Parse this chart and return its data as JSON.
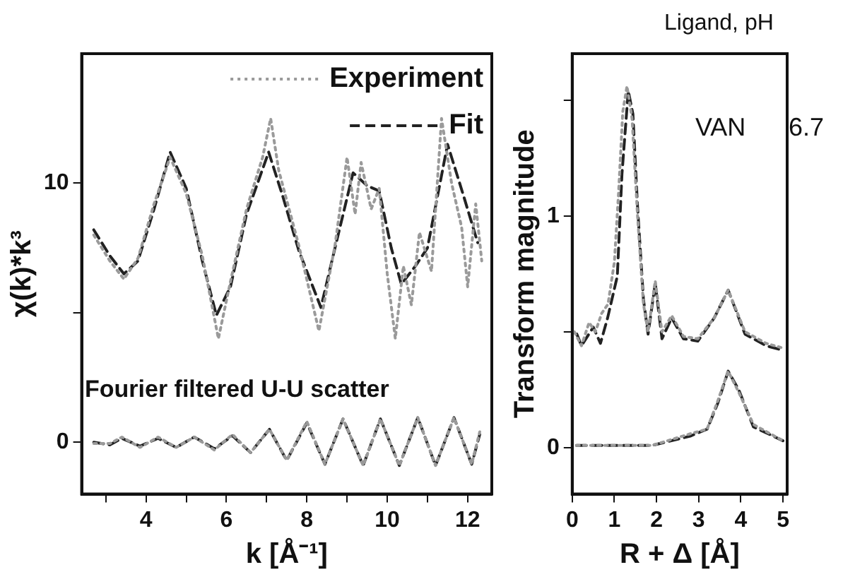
{
  "chart_data": [
    {
      "type": "line",
      "xlabel": "k [Å⁻¹]",
      "ylabel": "χ(k)*k³",
      "xlim": [
        2.4,
        12.6
      ],
      "ylim": [
        -2,
        15
      ],
      "xticks": [
        {
          "value": 3,
          "label": null
        },
        4,
        {
          "value": 5,
          "label": null
        },
        6,
        {
          "value": 7,
          "label": null
        },
        8,
        {
          "value": 9,
          "label": null
        },
        10,
        {
          "value": 11,
          "label": null
        },
        12
      ],
      "yticks": [
        0,
        {
          "value": 5,
          "label": null
        },
        10
      ],
      "grid": false,
      "legend": "top right",
      "marker": "none",
      "annotations": [
        "Fourier filtered U-U scatter"
      ],
      "series": [
        {
          "name": "Experiment",
          "color": "#9a9a9a",
          "line_style": "dotted",
          "x": [
            2.7,
            3.1,
            3.45,
            3.8,
            4.2,
            4.6,
            5.0,
            5.4,
            5.8,
            6.1,
            6.5,
            6.9,
            7.1,
            7.3,
            7.8,
            8.3,
            8.7,
            9.0,
            9.2,
            9.35,
            9.6,
            9.8,
            10.0,
            10.2,
            10.4,
            10.6,
            10.8,
            11.1,
            11.35,
            11.6,
            11.85,
            12.0,
            12.2,
            12.35
          ],
          "values": [
            8.0,
            7.0,
            6.3,
            7.1,
            9.2,
            11.0,
            9.6,
            7.2,
            4.0,
            6.2,
            9.0,
            11.0,
            12.5,
            10.5,
            7.6,
            4.3,
            7.6,
            11.0,
            8.8,
            10.8,
            9.0,
            9.8,
            6.5,
            4.0,
            6.8,
            5.3,
            8.1,
            6.6,
            12.5,
            10.0,
            8.3,
            6.0,
            9.2,
            7.0
          ]
        },
        {
          "name": "Fit",
          "color": "#222222",
          "line_style": "dashed",
          "x": [
            2.7,
            3.1,
            3.45,
            3.8,
            4.2,
            4.6,
            5.0,
            5.4,
            5.75,
            6.1,
            6.5,
            7.05,
            7.4,
            7.8,
            8.35,
            8.7,
            9.15,
            9.5,
            9.8,
            10.1,
            10.35,
            10.7,
            11.0,
            11.5,
            11.9,
            12.25
          ],
          "values": [
            8.2,
            7.2,
            6.5,
            7.0,
            9.0,
            11.2,
            9.8,
            7.0,
            4.9,
            6.0,
            8.8,
            11.2,
            9.5,
            7.4,
            5.2,
            7.5,
            10.4,
            9.9,
            9.7,
            7.5,
            6.1,
            6.8,
            7.5,
            11.5,
            9.5,
            7.7
          ]
        },
        {
          "color": "#9a9a9a",
          "line_style": "dotted",
          "x": [
            2.7,
            3.1,
            3.4,
            3.85,
            4.3,
            4.75,
            5.2,
            5.7,
            6.15,
            6.6,
            7.07,
            7.5,
            8.0,
            8.45,
            8.9,
            9.4,
            9.83,
            10.3,
            10.76,
            11.2,
            11.66,
            12.1,
            12.3
          ],
          "values": [
            -0.05,
            -0.05,
            0.2,
            -0.2,
            0.2,
            -0.2,
            0.2,
            -0.3,
            0.3,
            -0.4,
            0.5,
            -0.7,
            0.8,
            -0.85,
            0.9,
            -0.9,
            0.9,
            -0.9,
            0.95,
            -0.9,
            0.95,
            -0.85,
            0.4
          ]
        },
        {
          "color": "#222222",
          "line_style": "dashed",
          "x": [
            2.7,
            3.1,
            3.4,
            3.85,
            4.3,
            4.75,
            5.2,
            5.7,
            6.15,
            6.6,
            7.07,
            7.5,
            8.0,
            8.45,
            8.9,
            9.4,
            9.83,
            10.3,
            10.76,
            11.2,
            11.66,
            12.1,
            12.3
          ],
          "values": [
            0,
            -0.1,
            0.15,
            -0.15,
            0.15,
            -0.2,
            0.2,
            -0.25,
            0.25,
            -0.4,
            0.5,
            -0.7,
            0.75,
            -0.85,
            0.9,
            -0.9,
            0.9,
            -0.9,
            0.95,
            -0.9,
            0.95,
            -0.85,
            0.3
          ]
        }
      ]
    },
    {
      "type": "line",
      "xlabel": "R + Δ [Å]",
      "ylabel": "Transform magnitude",
      "xlim": [
        0,
        5.1
      ],
      "ylim": [
        -0.2,
        1.7
      ],
      "xticks": [
        0,
        1,
        2,
        3,
        4,
        5
      ],
      "yticks": [
        0,
        {
          "value": 0.5,
          "label": null
        },
        1,
        {
          "value": 1.5,
          "label": null
        }
      ],
      "grid": false,
      "marker": "none",
      "annotations": [
        "Ligand, pH",
        "VAN",
        "6.7"
      ],
      "series": [
        {
          "color": "#9a9a9a",
          "line_style": "dotted",
          "x": [
            0.05,
            0.22,
            0.4,
            0.55,
            0.7,
            0.85,
            1.0,
            1.1,
            1.2,
            1.3,
            1.42,
            1.55,
            1.69,
            1.8,
            1.97,
            2.13,
            2.36,
            2.64,
            2.98,
            3.37,
            3.7,
            4.1,
            4.6,
            5.0
          ],
          "values": [
            0.5,
            0.44,
            0.54,
            0.5,
            0.58,
            0.62,
            0.8,
            1.1,
            1.45,
            1.56,
            1.42,
            1.0,
            0.62,
            0.5,
            0.72,
            0.5,
            0.57,
            0.48,
            0.47,
            0.56,
            0.68,
            0.5,
            0.45,
            0.43
          ]
        },
        {
          "color": "#222222",
          "line_style": "dashed",
          "x": [
            0.11,
            0.22,
            0.5,
            0.67,
            0.84,
            1.07,
            1.18,
            1.33,
            1.44,
            1.55,
            1.69,
            1.8,
            1.97,
            2.13,
            2.36,
            2.64,
            2.98,
            3.37,
            3.7,
            4.1,
            4.6,
            5.0
          ],
          "values": [
            0.49,
            0.44,
            0.52,
            0.45,
            0.56,
            0.74,
            1.18,
            1.54,
            1.44,
            1.04,
            0.64,
            0.49,
            0.71,
            0.47,
            0.56,
            0.47,
            0.46,
            0.56,
            0.68,
            0.49,
            0.44,
            0.42
          ]
        },
        {
          "color": "#9a9a9a",
          "line_style": "dotted",
          "x": [
            0.1,
            1.9,
            2.8,
            3.2,
            3.45,
            3.7,
            3.95,
            4.3,
            5.0
          ],
          "values": [
            0.01,
            0.01,
            0.06,
            0.08,
            0.2,
            0.33,
            0.24,
            0.1,
            0.03
          ]
        },
        {
          "color": "#222222",
          "line_style": "dashed",
          "x": [
            0.1,
            1.9,
            2.8,
            3.2,
            3.45,
            3.7,
            3.95,
            4.3,
            5.0
          ],
          "values": [
            0.01,
            0.01,
            0.05,
            0.08,
            0.19,
            0.33,
            0.25,
            0.09,
            0.03
          ]
        }
      ]
    }
  ]
}
